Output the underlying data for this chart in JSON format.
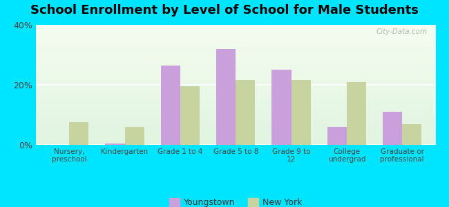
{
  "title": "School Enrollment by Level of School for Male Students",
  "categories": [
    "Nursery,\npreschool",
    "Kindergarten",
    "Grade 1 to 4",
    "Grade 5 to 8",
    "Grade 9 to\n12",
    "College\nundergrad",
    "Graduate or\nprofessional"
  ],
  "youngstown": [
    0.0,
    0.5,
    26.5,
    32.0,
    25.0,
    6.0,
    11.0
  ],
  "new_york": [
    7.5,
    6.0,
    19.5,
    21.5,
    21.5,
    21.0,
    7.0
  ],
  "youngstown_color": "#c9a0dc",
  "new_york_color": "#c8d4a0",
  "background_outer": "#00e5ff",
  "ylim": [
    0,
    40
  ],
  "yticks": [
    0,
    20,
    40
  ],
  "ytick_labels": [
    "0%",
    "20%",
    "40%"
  ],
  "title_fontsize": 13,
  "legend_labels": [
    "Youngstown",
    "New York"
  ],
  "watermark": "City-Data.com"
}
